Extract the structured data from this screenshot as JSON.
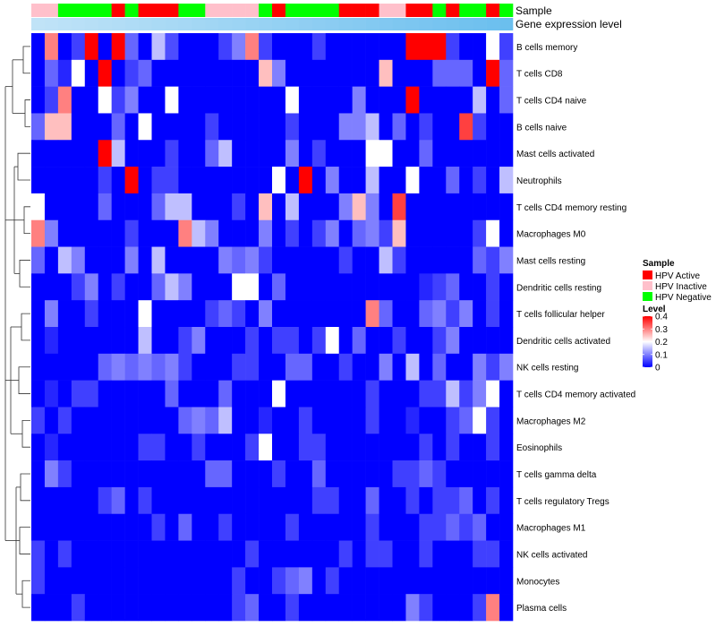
{
  "chart_data": {
    "type": "heatmap",
    "title": "",
    "annotation_labels": [
      "Sample",
      "Gene expression level"
    ],
    "columns": 36,
    "column_samples": [
      "HPV Inactive",
      "HPV Inactive",
      "HPV Negative",
      "HPV Negative",
      "HPV Negative",
      "HPV Negative",
      "HPV Active",
      "HPV Negative",
      "HPV Active",
      "HPV Active",
      "HPV Active",
      "HPV Negative",
      "HPV Negative",
      "HPV Inactive",
      "HPV Inactive",
      "HPV Inactive",
      "HPV Inactive",
      "HPV Negative",
      "HPV Active",
      "HPV Negative",
      "HPV Negative",
      "HPV Negative",
      "HPV Negative",
      "HPV Active",
      "HPV Active",
      "HPV Active",
      "HPV Inactive",
      "HPV Inactive",
      "HPV Active",
      "HPV Active",
      "HPV Negative",
      "HPV Active",
      "HPV Negative",
      "HPV Negative",
      "HPV Active",
      "HPV Negative"
    ],
    "column_expression": [
      0.12,
      0.14,
      0.16,
      0.18,
      0.2,
      0.22,
      0.24,
      0.26,
      0.28,
      0.3,
      0.32,
      0.34,
      0.36,
      0.38,
      0.4,
      0.42,
      0.44,
      0.46,
      0.48,
      0.5,
      0.52,
      0.54,
      0.56,
      0.58,
      0.6,
      0.62,
      0.64,
      0.66,
      0.68,
      0.7,
      0.72,
      0.74,
      0.76,
      0.78,
      0.8,
      0.82
    ],
    "rows": [
      "B cells memory",
      "T cells CD8",
      "T cells CD4 naive",
      "B cells naive",
      "Mast cells activated",
      "Neutrophils",
      "T cells CD4 memory resting",
      "Macrophages M0",
      "Mast cells resting",
      "Dendritic cells resting",
      "T cells follicular helper",
      "Dendritic cells activated",
      "NK cells resting",
      "T cells CD4 memory activated",
      "Macrophages M2",
      "Eosinophils",
      "T cells gamma delta",
      "T cells regulatory  Tregs",
      "Macrophages M1",
      "NK cells activated",
      "Monocytes",
      "Plasma cells"
    ],
    "values": [
      [
        0.0,
        0.3,
        0.0,
        0.05,
        0.4,
        0.0,
        0.4,
        0.08,
        0.0,
        0.15,
        0.06,
        0.0,
        0.0,
        0.0,
        0.05,
        0.1,
        0.3,
        0.05,
        0.0,
        0.0,
        0.0,
        0.05,
        0.0,
        0.0,
        0.0,
        0.0,
        0.0,
        0.0,
        0.4,
        0.4,
        0.4,
        0.05,
        0.0,
        0.0,
        0.2,
        0.05
      ],
      [
        0.0,
        0.08,
        0.03,
        0.2,
        0.0,
        0.4,
        0.0,
        0.05,
        0.08,
        0.0,
        0.0,
        0.0,
        0.0,
        0.0,
        0.0,
        0.0,
        0.0,
        0.25,
        0.1,
        0.0,
        0.0,
        0.0,
        0.0,
        0.0,
        0.0,
        0.0,
        0.25,
        0.0,
        0.0,
        0.0,
        0.08,
        0.08,
        0.08,
        0.0,
        0.4,
        0.08
      ],
      [
        0.0,
        0.05,
        0.3,
        0.0,
        0.0,
        0.2,
        0.05,
        0.1,
        0.0,
        0.0,
        0.2,
        0.0,
        0.0,
        0.0,
        0.0,
        0.0,
        0.0,
        0.0,
        0.0,
        0.2,
        0.0,
        0.0,
        0.0,
        0.0,
        0.1,
        0.0,
        0.0,
        0.0,
        0.4,
        0.0,
        0.0,
        0.0,
        0.0,
        0.15,
        0.0,
        0.08
      ],
      [
        0.08,
        0.25,
        0.25,
        0.0,
        0.0,
        0.0,
        0.08,
        0.0,
        0.2,
        0.0,
        0.0,
        0.0,
        0.0,
        0.05,
        0.0,
        0.0,
        0.0,
        0.0,
        0.0,
        0.05,
        0.0,
        0.0,
        0.0,
        0.1,
        0.1,
        0.15,
        0.0,
        0.08,
        0.0,
        0.05,
        0.0,
        0.0,
        0.35,
        0.05,
        0.0,
        0.0
      ],
      [
        0.0,
        0.0,
        0.0,
        0.0,
        0.0,
        0.4,
        0.15,
        0.0,
        0.0,
        0.0,
        0.05,
        0.0,
        0.0,
        0.08,
        0.15,
        0.0,
        0.0,
        0.0,
        0.0,
        0.1,
        0.0,
        0.05,
        0.0,
        0.0,
        0.0,
        0.2,
        0.2,
        0.0,
        0.0,
        0.08,
        0.0,
        0.0,
        0.0,
        0.0,
        0.0,
        0.0
      ],
      [
        0.0,
        0.0,
        0.0,
        0.0,
        0.0,
        0.05,
        0.0,
        0.4,
        0.0,
        0.05,
        0.05,
        0.0,
        0.0,
        0.0,
        0.0,
        0.0,
        0.0,
        0.0,
        0.2,
        0.0,
        0.4,
        0.0,
        0.1,
        0.0,
        0.0,
        0.15,
        0.0,
        0.0,
        0.2,
        0.0,
        0.0,
        0.08,
        0.0,
        0.05,
        0.0,
        0.15
      ],
      [
        0.2,
        0.0,
        0.0,
        0.0,
        0.0,
        0.08,
        0.0,
        0.0,
        0.0,
        0.08,
        0.15,
        0.15,
        0.0,
        0.0,
        0.0,
        0.05,
        0.0,
        0.25,
        0.0,
        0.15,
        0.0,
        0.0,
        0.0,
        0.1,
        0.25,
        0.1,
        0.0,
        0.35,
        0.0,
        0.0,
        0.0,
        0.0,
        0.0,
        0.0,
        0.0,
        0.0
      ],
      [
        0.3,
        0.1,
        0.0,
        0.0,
        0.0,
        0.0,
        0.0,
        0.05,
        0.0,
        0.0,
        0.0,
        0.3,
        0.15,
        0.1,
        0.0,
        0.0,
        0.0,
        0.1,
        0.0,
        0.05,
        0.0,
        0.05,
        0.1,
        0.0,
        0.08,
        0.1,
        0.05,
        0.25,
        0.0,
        0.0,
        0.0,
        0.0,
        0.0,
        0.05,
        0.2,
        0.0
      ],
      [
        0.08,
        0.0,
        0.15,
        0.1,
        0.0,
        0.0,
        0.0,
        0.1,
        0.0,
        0.15,
        0.0,
        0.0,
        0.0,
        0.0,
        0.1,
        0.08,
        0.1,
        0.05,
        0.0,
        0.0,
        0.0,
        0.0,
        0.0,
        0.05,
        0.0,
        0.0,
        0.15,
        0.05,
        0.0,
        0.0,
        0.0,
        0.0,
        0.0,
        0.08,
        0.05,
        0.1
      ],
      [
        0.0,
        0.0,
        0.0,
        0.05,
        0.1,
        0.0,
        0.05,
        0.0,
        0.0,
        0.08,
        0.15,
        0.1,
        0.0,
        0.0,
        0.0,
        0.2,
        0.2,
        0.0,
        0.08,
        0.0,
        0.0,
        0.0,
        0.0,
        0.0,
        0.0,
        0.0,
        0.0,
        0.0,
        0.0,
        0.03,
        0.05,
        0.08,
        0.0,
        0.0,
        0.05,
        0.0
      ],
      [
        0.0,
        0.1,
        0.0,
        0.0,
        0.05,
        0.0,
        0.0,
        0.0,
        0.2,
        0.0,
        0.0,
        0.0,
        0.0,
        0.05,
        0.08,
        0.05,
        0.0,
        0.1,
        0.0,
        0.0,
        0.0,
        0.0,
        0.0,
        0.0,
        0.0,
        0.3,
        0.08,
        0.0,
        0.0,
        0.08,
        0.1,
        0.05,
        0.1,
        0.0,
        0.05,
        0.0
      ],
      [
        0.0,
        0.03,
        0.0,
        0.0,
        0.0,
        0.0,
        0.0,
        0.0,
        0.15,
        0.0,
        0.0,
        0.05,
        0.1,
        0.0,
        0.0,
        0.0,
        0.05,
        0.0,
        0.05,
        0.05,
        0.0,
        0.05,
        0.2,
        0.0,
        0.08,
        0.0,
        0.0,
        0.05,
        0.0,
        0.0,
        0.05,
        0.1,
        0.0,
        0.0,
        0.0,
        0.0
      ],
      [
        0.0,
        0.0,
        0.0,
        0.0,
        0.0,
        0.08,
        0.1,
        0.08,
        0.1,
        0.08,
        0.1,
        0.05,
        0.0,
        0.0,
        0.0,
        0.05,
        0.05,
        0.0,
        0.0,
        0.08,
        0.08,
        0.0,
        0.0,
        0.05,
        0.0,
        0.0,
        0.1,
        0.0,
        0.15,
        0.0,
        0.08,
        0.0,
        0.0,
        0.1,
        0.05,
        0.1
      ],
      [
        0.0,
        0.03,
        0.0,
        0.05,
        0.05,
        0.0,
        0.0,
        0.0,
        0.0,
        0.0,
        0.08,
        0.0,
        0.0,
        0.0,
        0.08,
        0.0,
        0.0,
        0.0,
        0.2,
        0.0,
        0.0,
        0.0,
        0.0,
        0.0,
        0.0,
        0.05,
        0.0,
        0.0,
        0.0,
        0.05,
        0.05,
        0.15,
        0.05,
        0.1,
        0.2,
        0.0
      ],
      [
        0.05,
        0.0,
        0.05,
        0.0,
        0.0,
        0.0,
        0.0,
        0.0,
        0.0,
        0.0,
        0.0,
        0.08,
        0.1,
        0.08,
        0.15,
        0.0,
        0.0,
        0.03,
        0.0,
        0.0,
        0.05,
        0.0,
        0.0,
        0.0,
        0.0,
        0.05,
        0.0,
        0.0,
        0.03,
        0.0,
        0.0,
        0.05,
        0.08,
        0.2,
        0.05,
        0.0
      ],
      [
        0.0,
        0.03,
        0.0,
        0.0,
        0.0,
        0.0,
        0.0,
        0.0,
        0.05,
        0.05,
        0.0,
        0.0,
        0.05,
        0.0,
        0.0,
        0.0,
        0.05,
        0.2,
        0.0,
        0.0,
        0.05,
        0.05,
        0.0,
        0.0,
        0.0,
        0.0,
        0.0,
        0.0,
        0.0,
        0.05,
        0.0,
        0.05,
        0.0,
        0.0,
        0.05,
        0.0
      ],
      [
        0.0,
        0.1,
        0.05,
        0.0,
        0.0,
        0.0,
        0.0,
        0.0,
        0.0,
        0.0,
        0.0,
        0.0,
        0.0,
        0.08,
        0.08,
        0.0,
        0.0,
        0.0,
        0.05,
        0.0,
        0.0,
        0.08,
        0.0,
        0.0,
        0.0,
        0.0,
        0.0,
        0.05,
        0.05,
        0.08,
        0.05,
        0.0,
        0.0,
        0.0,
        0.0,
        0.0
      ],
      [
        0.0,
        0.0,
        0.0,
        0.0,
        0.0,
        0.05,
        0.08,
        0.0,
        0.05,
        0.0,
        0.0,
        0.0,
        0.0,
        0.0,
        0.0,
        0.0,
        0.0,
        0.0,
        0.0,
        0.0,
        0.0,
        0.05,
        0.05,
        0.0,
        0.0,
        0.08,
        0.0,
        0.0,
        0.05,
        0.0,
        0.05,
        0.05,
        0.08,
        0.0,
        0.05,
        0.0
      ],
      [
        0.0,
        0.0,
        0.0,
        0.0,
        0.0,
        0.0,
        0.0,
        0.0,
        0.0,
        0.05,
        0.0,
        0.08,
        0.0,
        0.0,
        0.05,
        0.0,
        0.0,
        0.0,
        0.0,
        0.05,
        0.0,
        0.0,
        0.0,
        0.0,
        0.0,
        0.05,
        0.0,
        0.0,
        0.0,
        0.05,
        0.05,
        0.08,
        0.05,
        0.08,
        0.0,
        0.0
      ],
      [
        0.05,
        0.0,
        0.05,
        0.0,
        0.0,
        0.0,
        0.0,
        0.0,
        0.0,
        0.0,
        0.0,
        0.0,
        0.0,
        0.0,
        0.0,
        0.0,
        0.05,
        0.0,
        0.0,
        0.0,
        0.0,
        0.0,
        0.0,
        0.05,
        0.0,
        0.05,
        0.05,
        0.0,
        0.0,
        0.05,
        0.0,
        0.0,
        0.0,
        0.05,
        0.05,
        0.0
      ],
      [
        0.05,
        0.0,
        0.0,
        0.0,
        0.0,
        0.0,
        0.0,
        0.0,
        0.0,
        0.0,
        0.0,
        0.0,
        0.0,
        0.0,
        0.0,
        0.05,
        0.0,
        0.0,
        0.05,
        0.08,
        0.1,
        0.0,
        0.05,
        0.0,
        0.0,
        0.0,
        0.0,
        0.0,
        0.0,
        0.0,
        0.0,
        0.0,
        0.0,
        0.0,
        0.0,
        0.0
      ],
      [
        0.0,
        0.0,
        0.0,
        0.05,
        0.0,
        0.0,
        0.0,
        0.0,
        0.0,
        0.0,
        0.0,
        0.0,
        0.0,
        0.0,
        0.0,
        0.05,
        0.08,
        0.0,
        0.0,
        0.05,
        0.0,
        0.0,
        0.0,
        0.0,
        0.0,
        0.0,
        0.0,
        0.0,
        0.1,
        0.05,
        0.0,
        0.0,
        0.0,
        0.05,
        0.3,
        0.0
      ]
    ],
    "legend_sample": {
      "title": "Sample",
      "items": [
        {
          "label": "HPV Active",
          "color": "#ff0000"
        },
        {
          "label": "HPV Inactive",
          "color": "#ffc0cb"
        },
        {
          "label": "HPV Negative",
          "color": "#00ff00"
        }
      ]
    },
    "legend_level": {
      "title": "Level",
      "ticks": [
        0.4,
        0.3,
        0.2,
        0.1,
        0
      ],
      "tick_labels": [
        "0.4",
        "0.3",
        "0.2",
        "0.1",
        "0"
      ],
      "range": [
        0,
        0.4
      ],
      "colors": {
        "low": "#0000ff",
        "mid": "#ffffff",
        "high": "#ff0000"
      }
    },
    "expression_colors": {
      "low": "#cfe9f9",
      "high": "#55b6ec"
    }
  }
}
